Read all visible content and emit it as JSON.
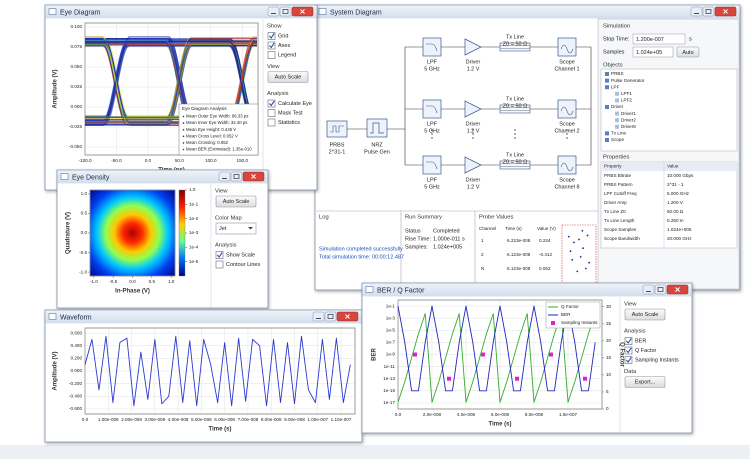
{
  "eye_diagram": {
    "title": "Eye Diagram",
    "sections": [
      {
        "label": "Show",
        "items": [
          {
            "label": "Grid",
            "checked": true
          },
          {
            "label": "Axes",
            "checked": true
          },
          {
            "label": "Legend",
            "checked": false
          }
        ]
      },
      {
        "label": "View",
        "button": "Auto Scale"
      },
      {
        "label": "Analysis",
        "items": [
          {
            "label": "Calculate Eye",
            "checked": true
          },
          {
            "label": "Mask Test",
            "checked": false
          },
          {
            "label": "Statistics",
            "checked": false
          }
        ]
      }
    ],
    "chart": {
      "type": "eye",
      "x_label": "Time (ps)",
      "y_label": "Amplitude (V)",
      "xlim": [
        -100,
        175
      ],
      "ylim": [
        -0.06,
        0.105
      ],
      "grid": true,
      "xticks": [
        {
          "value": -100,
          "label": "-100.0"
        },
        {
          "value": -50,
          "label": "-50.0"
        },
        {
          "value": 0,
          "label": "0.0"
        },
        {
          "value": 50,
          "label": "50.0"
        },
        {
          "value": 100,
          "label": "100.0"
        },
        {
          "value": 150,
          "label": "150.0"
        }
      ],
      "yticks": [
        {
          "value": 0.1,
          "label": "0.100"
        },
        {
          "value": 0.075,
          "label": "0.075"
        },
        {
          "value": 0.05,
          "label": "0.050"
        },
        {
          "value": 0.025,
          "label": "0.025"
        },
        {
          "value": 0,
          "label": "0.000"
        },
        {
          "value": -0.025,
          "label": "-0.025"
        },
        {
          "value": -0.05,
          "label": "-0.050"
        }
      ],
      "analysis": {
        "title": "Eye Diagram Analysis",
        "lines": [
          "Mean Outer Eye Width: 96.33 ps",
          "Mean Inner Eye Width: 32.40 ps",
          "Mean Eye Height: 0.445 V",
          "Mean Cross Level: 0.052 V",
          "Mean Crossing: 0.052",
          "Mean BER (Estimated): 1.35e-010"
        ]
      }
    }
  },
  "system_diagram": {
    "title": "System Diagram",
    "prbs": [
      "PRBS",
      "2^31-1"
    ],
    "nrz": [
      "NRZ",
      "Pulse Gen"
    ],
    "rows": [
      {
        "lpf": [
          "LPF",
          "5 GHz"
        ],
        "driver": [
          "Driver",
          "1.2 V"
        ],
        "txline": [
          "Tx Line",
          "Z0 = 50 Ω"
        ],
        "scope": [
          "Scope",
          "Channel 1"
        ]
      },
      {
        "lpf": [
          "LPF",
          "5 GHz"
        ],
        "driver": [
          "Driver",
          "1.2 V"
        ],
        "txline": [
          "Tx Line",
          "Z0 = 50 Ω"
        ],
        "scope": [
          "Scope",
          "Channel 2"
        ]
      },
      {
        "lpf": [
          "LPF",
          "5 GHz"
        ],
        "driver": [
          "Driver",
          "1.2 V"
        ],
        "txline": [
          "Tx Line",
          "Z0 = 50 Ω"
        ],
        "scope": [
          "Scope",
          "Channel 8"
        ]
      }
    ],
    "log": {
      "title": "Log",
      "lines": [
        "Simulation completed successfully",
        "Total simulation time: 00:00:12.487"
      ]
    },
    "run_summary": {
      "title": "Run Summary",
      "rows": [
        [
          "Status",
          "Completed"
        ],
        [
          "Rise Time:",
          "1.000e-011 s"
        ],
        [
          "Samples:",
          "1.024e+005"
        ]
      ]
    },
    "probe_values": {
      "title": "Probe Values",
      "header": [
        "Channel",
        "Time (s)",
        "Value (V)"
      ],
      "rows": [
        [
          "1",
          "6.223e-008",
          "0.234"
        ],
        [
          "2",
          "6.123e-008",
          "-0.412"
        ],
        [
          "N",
          "6.123e-008",
          "0.062"
        ]
      ],
      "scatter": {
        "x": [
          0.2,
          0.35,
          0.5,
          0.62,
          0.75,
          0.3,
          0.55,
          0.8,
          0.45,
          0.7,
          0.25,
          0.6
        ],
        "y": [
          0.8,
          0.7,
          0.75,
          0.6,
          0.82,
          0.4,
          0.45,
          0.35,
          0.2,
          0.25,
          0.55,
          0.9
        ],
        "xlim": [
          0,
          1
        ],
        "ylim": [
          0,
          1
        ],
        "color": "#1a2aa0"
      }
    },
    "simulation": {
      "title": "Simulation",
      "stop_time_label": "Stop Time:",
      "stop_time": "1.200e-007",
      "unit": "s",
      "samples_label": "Samples",
      "samples": "1.024e+05",
      "auto": "Auto"
    },
    "objects": {
      "title": "Objects",
      "items": [
        {
          "label": "PRBS",
          "level": 1
        },
        {
          "label": "Pulse Generator",
          "level": 1
        },
        {
          "label": "LPF",
          "level": 1
        },
        {
          "label": "LPF1",
          "level": 2
        },
        {
          "label": "LPF2",
          "level": 2
        },
        {
          "label": "Driver",
          "level": 1
        },
        {
          "label": "Driver1",
          "level": 2
        },
        {
          "label": "Driver2",
          "level": 2
        },
        {
          "label": "Driver8",
          "level": 2
        },
        {
          "label": "Tx Line",
          "level": 1
        },
        {
          "label": "Scope",
          "level": 1
        }
      ]
    },
    "properties": {
      "title": "Properties",
      "header": [
        "Property",
        "Value"
      ],
      "rows": [
        [
          "PRBS Bitrate",
          "10.000 Gbps"
        ],
        [
          "PRBS Pattern",
          "2^31 - 1"
        ],
        [
          "LPF Cutoff Freq",
          "5.000 GHz"
        ],
        [
          "Driver Amp",
          "1.200 V"
        ],
        [
          "Tx Line Z0",
          "50.00 Ω"
        ],
        [
          "Tx Line Length",
          "0.250 m"
        ],
        [
          "Scope Samples",
          "1.024e+005"
        ],
        [
          "Scope Bandwidth",
          "20.000 GHz"
        ]
      ]
    }
  },
  "eye_density": {
    "title": "Eye Density",
    "sections": [
      {
        "label": "View",
        "button": "Auto Scale"
      },
      {
        "label": "Color Map",
        "dropdown": "Jet"
      },
      {
        "label": "Analysis",
        "items": [
          {
            "label": "Show Scale",
            "checked": true
          },
          {
            "label": "Contour Lines",
            "checked": false
          }
        ]
      }
    ],
    "chart": {
      "type": "density",
      "x_label": "In-Phase (V)",
      "y_label": "Quadrature (V)",
      "xlim": [
        -1.1,
        1.1
      ],
      "ylim": [
        -1.1,
        1.1
      ],
      "grid": false,
      "xticks": [
        {
          "value": -1,
          "label": "-1.0"
        },
        {
          "value": -0.5,
          "label": "-0.5"
        },
        {
          "value": 0,
          "label": "0.0"
        },
        {
          "value": 0.5,
          "label": "0.5"
        },
        {
          "value": 1,
          "label": "1.0"
        }
      ],
      "yticks": [
        {
          "value": 1,
          "label": "1.0"
        },
        {
          "value": 0.5,
          "label": "0.5"
        },
        {
          "value": 0,
          "label": "0.0"
        },
        {
          "value": -0.5,
          "label": "-0.5"
        },
        {
          "value": -1,
          "label": "-1.0"
        }
      ],
      "colorbar_lim": [
        1e-06,
        1
      ],
      "colorbar_ticks": [
        {
          "value": 1,
          "label": "1.0"
        },
        {
          "value": 0.1,
          "label": "1e-1"
        },
        {
          "value": 0.01,
          "label": "1e-2"
        },
        {
          "value": 0.001,
          "label": "1e-3"
        },
        {
          "value": 0.0001,
          "label": "1e-4"
        },
        {
          "value": 1e-05,
          "label": "1e-5"
        }
      ]
    }
  },
  "waveform": {
    "title": "Waveform",
    "chart": {
      "type": "line",
      "x_label": "Time (s)",
      "y_label": "Amplitude (V)",
      "grid": true,
      "xlim": [
        0,
        1.16e-07
      ],
      "ylim": [
        -0.68,
        0.68
      ],
      "xticks": [
        {
          "value": 0,
          "label": "0.0"
        },
        {
          "value": 1e-08,
          "label": "1.00e-008"
        },
        {
          "value": 2e-08,
          "label": "2.00e-008"
        },
        {
          "value": 3e-08,
          "label": "3.00e-008"
        },
        {
          "value": 4e-08,
          "label": "4.00e-008"
        },
        {
          "value": 5e-08,
          "label": "5.00e-008"
        },
        {
          "value": 6e-08,
          "label": "6.00e-008"
        },
        {
          "value": 7e-08,
          "label": "7.00e-008"
        },
        {
          "value": 8e-08,
          "label": "8.00e-008"
        },
        {
          "value": 9e-08,
          "label": "9.00e-008"
        },
        {
          "value": 1e-07,
          "label": "1.00e-007"
        },
        {
          "value": 1.1e-07,
          "label": "1.10e-007"
        }
      ],
      "yticks": [
        {
          "value": 0.6,
          "label": "0.600"
        },
        {
          "value": 0.4,
          "label": "0.400"
        },
        {
          "value": 0.2,
          "label": "0.200"
        },
        {
          "value": 0,
          "label": "0.000"
        },
        {
          "value": -0.2,
          "label": "-0.200"
        },
        {
          "value": -0.4,
          "label": "-0.400"
        },
        {
          "value": -0.6,
          "label": "-0.600"
        }
      ],
      "series": [
        {
          "color": "#2a3ad0",
          "x": [
            0,
            3e-09,
            6e-09,
            9e-09,
            1.2e-08,
            1.5e-08,
            1.8e-08,
            2.1e-08,
            2.4e-08,
            2.7e-08,
            3e-08,
            3.3e-08,
            3.6e-08,
            3.9e-08,
            4.2e-08,
            4.5e-08,
            4.8e-08,
            5.1e-08,
            5.4e-08,
            5.7e-08,
            6e-08,
            6.3e-08,
            6.6e-08,
            6.9e-08,
            7.2e-08,
            7.5e-08,
            7.8e-08,
            8.1e-08,
            8.4e-08,
            8.7e-08,
            9e-08,
            9.3e-08,
            9.6e-08,
            9.9e-08,
            1.02e-07,
            1.05e-07,
            1.08e-07,
            1.11e-07,
            1.14e-07
          ],
          "values": [
            0.1,
            0.5,
            -0.3,
            0.55,
            -0.5,
            0.45,
            0.52,
            -0.55,
            0.3,
            -0.45,
            0.5,
            -0.52,
            -0.4,
            0.55,
            -0.5,
            0.48,
            -0.55,
            0.5,
            0.1,
            -0.5,
            0.45,
            -0.55,
            0.52,
            -0.48,
            0.5,
            0.4,
            -0.55,
            0.5,
            -0.5,
            0.45,
            -0.52,
            0.55,
            -0.3,
            -0.5,
            0.5,
            -0.45,
            0.52,
            -0.5,
            0.1
          ]
        }
      ]
    }
  },
  "ber_q": {
    "title": "BER / Q Factor",
    "sections": [
      {
        "label": "View",
        "button": "Auto Scale"
      },
      {
        "label": "Analysis",
        "items": [
          {
            "label": "BER",
            "checked": true
          },
          {
            "label": "Q Factor",
            "checked": true
          },
          {
            "label": "Sampling Instants",
            "checked": true
          }
        ]
      },
      {
        "label": "Data",
        "button": "Export..."
      }
    ],
    "chart": {
      "type": "ber",
      "x_label": "Time (s)",
      "y_label": "BER",
      "y2_label": "Q Factor",
      "grid": true,
      "log_y": true,
      "xlim": [
        0,
        1.2e-07
      ],
      "ylim": [
        1e-18,
        1
      ],
      "y2lim": [
        0,
        32
      ],
      "xticks": [
        {
          "value": 0,
          "label": "0.0"
        },
        {
          "value": 2e-08,
          "label": "2.0e-008"
        },
        {
          "value": 4e-08,
          "label": "4.0e-008"
        },
        {
          "value": 6e-08,
          "label": "6.0e-008"
        },
        {
          "value": 8e-08,
          "label": "8.0e-008"
        },
        {
          "value": 1e-07,
          "label": "1.0e-007"
        }
      ],
      "yticks": [
        {
          "value": 0.1,
          "label": "1e-1"
        },
        {
          "value": 0.001,
          "label": "1e-3"
        },
        {
          "value": 1e-05,
          "label": "1e-5"
        },
        {
          "value": 1e-07,
          "label": "1e-7"
        },
        {
          "value": 1e-09,
          "label": "1e-9"
        },
        {
          "value": 1e-11,
          "label": "1e-11"
        },
        {
          "value": 1e-13,
          "label": "1e-13"
        },
        {
          "value": 1e-15,
          "label": "1e-15"
        },
        {
          "value": 1e-17,
          "label": "1e-17"
        }
      ],
      "y2ticks": [
        0,
        5,
        10,
        15,
        20,
        25,
        30
      ],
      "series": [
        {
          "name": "Q Factor",
          "color": "#2fae2f",
          "axis": "y2",
          "x": [
            0,
            4e-09,
            8e-09,
            1.2e-08,
            1.6e-08,
            2e-08,
            2.4e-08,
            2.8e-08,
            3.2e-08,
            3.6e-08,
            4e-08,
            4.4e-08,
            4.8e-08,
            5.2e-08,
            5.6e-08,
            6e-08,
            6.4e-08,
            6.8e-08,
            7.2e-08,
            7.6e-08,
            8e-08,
            8.4e-08,
            8.8e-08,
            9.2e-08,
            9.6e-08,
            1e-07,
            1.04e-07,
            1.08e-07,
            1.12e-07,
            1.16e-07
          ],
          "values": [
            2,
            8,
            15,
            22,
            28,
            2,
            8,
            15,
            22,
            28,
            2,
            8,
            15,
            22,
            28,
            2,
            8,
            15,
            22,
            28,
            2,
            8,
            15,
            22,
            28,
            2,
            8,
            15,
            22,
            28
          ]
        },
        {
          "name": "BER",
          "color": "#1f24c4",
          "x": [
            0,
            4e-09,
            8e-09,
            1.2e-08,
            1.6e-08,
            2e-08,
            2.4e-08,
            2.8e-08,
            3.2e-08,
            3.6e-08,
            4e-08,
            4.4e-08,
            4.8e-08,
            5.2e-08,
            5.6e-08,
            6e-08,
            6.4e-08,
            6.8e-08,
            7.2e-08,
            7.6e-08,
            8e-08,
            8.4e-08,
            8.8e-08,
            9.2e-08,
            9.6e-08,
            1e-07,
            1.04e-07,
            1.08e-07,
            1.12e-07,
            1.16e-07
          ],
          "values": [
            0.1,
            1e-07,
            1e-15,
            1e-15,
            1e-07,
            0.1,
            1e-07,
            1e-15,
            1e-15,
            1e-07,
            0.1,
            1e-07,
            1e-15,
            1e-15,
            1e-07,
            0.1,
            1e-07,
            1e-15,
            1e-15,
            1e-07,
            0.1,
            1e-07,
            1e-15,
            1e-15,
            1e-07,
            0.1,
            1e-07,
            1e-15,
            1e-15,
            1e-07
          ]
        },
        {
          "name": "Sampling Instants",
          "color": "#e020c8",
          "marker": "square",
          "x": [
            1e-08,
            3e-08,
            5e-08,
            7e-08,
            9e-08,
            1.1e-07
          ],
          "values": [
            1e-09,
            1e-13,
            1e-09,
            1e-13,
            1e-09,
            1e-13
          ]
        }
      ]
    }
  }
}
